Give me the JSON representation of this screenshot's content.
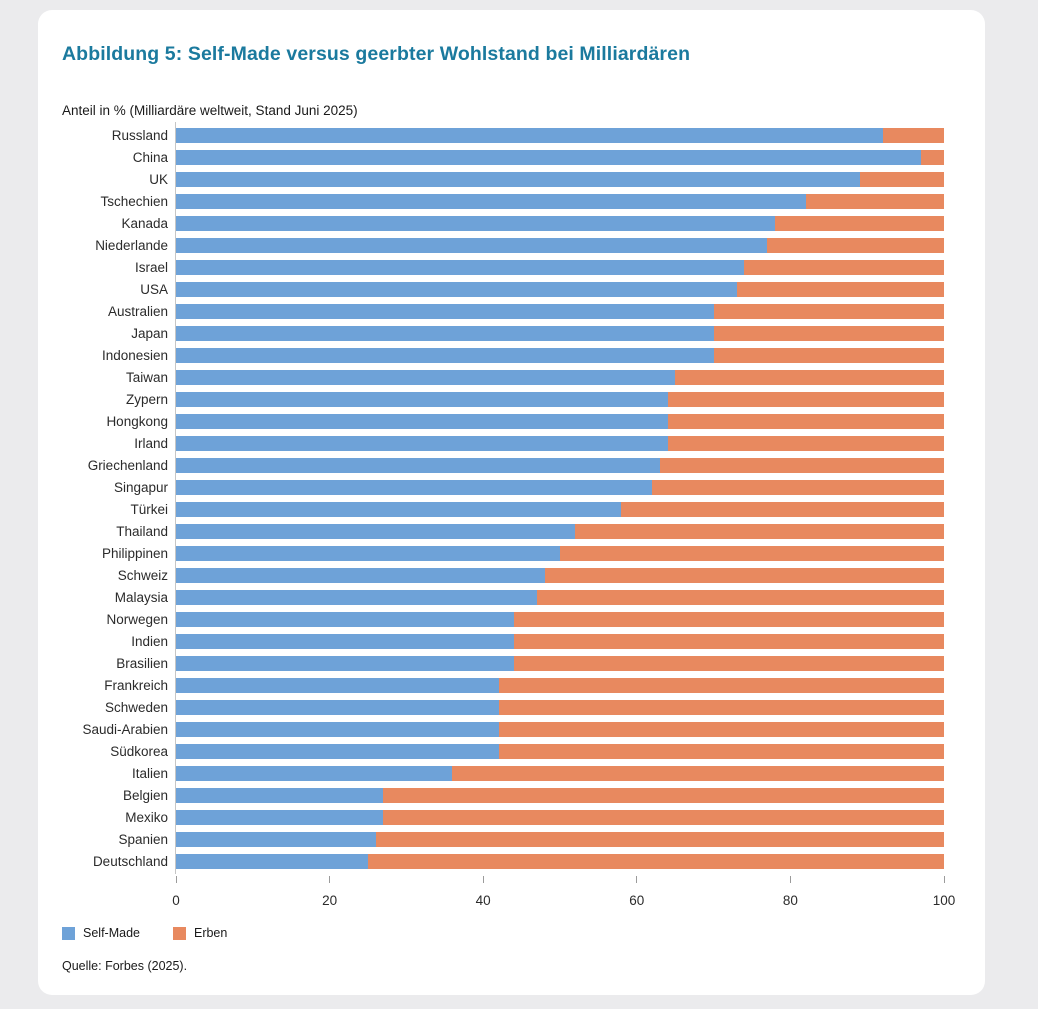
{
  "colors": {
    "title": "#1b7a9e",
    "self_made": "#6ea2d8",
    "erben": "#e8895f",
    "axis_line": "#c6c6c6",
    "tick": "#9b9b9b",
    "card_bg": "#ffffff",
    "page_bg": "#ebebed"
  },
  "chart_data": {
    "type": "bar",
    "stacked": true,
    "orientation": "horizontal",
    "title": "Abbildung 5: Self-Made versus geerbter Wohlstand bei Milliardären",
    "subtitle": "Anteil in % (Milliardäre weltweit, Stand Juni 2025)",
    "source": "Quelle: Forbes (2025).",
    "unit": "%",
    "xlabel": "",
    "ylabel": "",
    "xlim": [
      0,
      100
    ],
    "xticks": [
      0,
      20,
      40,
      60,
      80,
      100
    ],
    "grid": false,
    "legend_position": "bottom-left",
    "categories": [
      "Russland",
      "China",
      "UK",
      "Tschechien",
      "Kanada",
      "Niederlande",
      "Israel",
      "USA",
      "Australien",
      "Japan",
      "Indonesien",
      "Taiwan",
      "Zypern",
      "Hongkong",
      "Irland",
      "Griechenland",
      "Singapur",
      "Türkei",
      "Thailand",
      "Philippinen",
      "Schweiz",
      "Malaysia",
      "Norwegen",
      "Indien",
      "Brasilien",
      "Frankreich",
      "Schweden",
      "Saudi-Arabien",
      "Südkorea",
      "Italien",
      "Belgien",
      "Mexiko",
      "Spanien",
      "Deutschland"
    ],
    "series": [
      {
        "name": "Self-Made",
        "color": "#6ea2d8",
        "values": [
          92,
          97,
          89,
          82,
          78,
          77,
          74,
          73,
          70,
          70,
          70,
          65,
          64,
          64,
          64,
          63,
          62,
          58,
          52,
          50,
          48,
          47,
          44,
          44,
          44,
          42,
          42,
          42,
          42,
          36,
          27,
          27,
          26,
          25
        ]
      },
      {
        "name": "Erben",
        "color": "#e8895f",
        "values": [
          8,
          3,
          11,
          18,
          22,
          23,
          26,
          27,
          30,
          30,
          30,
          35,
          36,
          36,
          36,
          37,
          38,
          42,
          48,
          50,
          52,
          53,
          56,
          56,
          56,
          58,
          58,
          58,
          58,
          64,
          73,
          73,
          74,
          75
        ]
      }
    ]
  }
}
